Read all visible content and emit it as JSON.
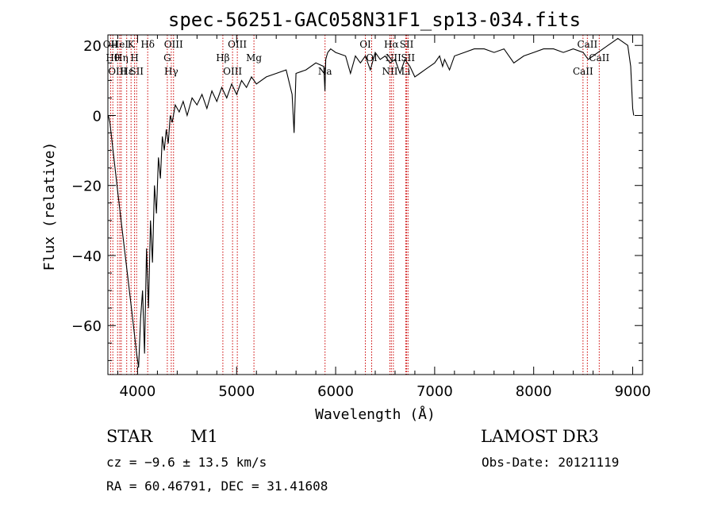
{
  "chart_data": {
    "type": "line",
    "title": "spec-56251-GAC058N31F1_sp13-034.fits",
    "xlabel": "Wavelength (Å)",
    "ylabel": "Flux (relative)",
    "xlim": [
      3700,
      9100
    ],
    "ylim": [
      -74,
      23
    ],
    "xticks": [
      4000,
      5000,
      6000,
      7000,
      8000,
      9000
    ],
    "yticks": [
      -60,
      -40,
      -20,
      0,
      20
    ],
    "xtick_labels": [
      "4000",
      "5000",
      "6000",
      "7000",
      "8000",
      "9000"
    ],
    "ytick_labels": [
      "−60",
      "−40",
      "−20",
      "0",
      "20"
    ],
    "series": [
      {
        "name": "flux",
        "x": [
          3705,
          3720,
          3760,
          3800,
          3850,
          3900,
          3950,
          3990,
          4010,
          4030,
          4050,
          4070,
          4090,
          4110,
          4130,
          4150,
          4170,
          4190,
          4210,
          4230,
          4250,
          4270,
          4290,
          4310,
          4330,
          4350,
          4380,
          4420,
          4460,
          4500,
          4550,
          4600,
          4650,
          4700,
          4750,
          4800,
          4850,
          4900,
          4950,
          5000,
          5050,
          5100,
          5150,
          5200,
          5300,
          5400,
          5500,
          5560,
          5580,
          5600,
          5700,
          5800,
          5880,
          5892,
          5900,
          5910,
          5920,
          5950,
          6000,
          6100,
          6150,
          6200,
          6250,
          6300,
          6350,
          6400,
          6450,
          6500,
          6550,
          6600,
          6650,
          6700,
          6750,
          6800,
          6850,
          6900,
          6950,
          7000,
          7050,
          7080,
          7100,
          7150,
          7200,
          7300,
          7400,
          7500,
          7600,
          7700,
          7800,
          7900,
          8000,
          8100,
          8200,
          8300,
          8400,
          8500,
          8550,
          8600,
          8650,
          8700,
          8750,
          8800,
          8850,
          8900,
          8950,
          8980,
          9000,
          9010
        ],
        "y": [
          0,
          -2,
          -12,
          -22,
          -34,
          -46,
          -58,
          -68,
          -72,
          -58,
          -50,
          -68,
          -38,
          -55,
          -30,
          -42,
          -20,
          -28,
          -12,
          -18,
          -6,
          -10,
          -4,
          -8,
          0,
          -2,
          3,
          1,
          4,
          0,
          5,
          3,
          6,
          2,
          7,
          4,
          8,
          5,
          9,
          6,
          10,
          8,
          11,
          9,
          11,
          12,
          13,
          6,
          -5,
          12,
          13,
          15,
          14,
          7,
          16,
          17,
          18,
          19,
          18,
          17,
          12,
          17,
          15,
          17,
          13,
          18,
          16,
          17,
          15,
          16,
          12,
          16,
          14,
          11,
          12,
          13,
          14,
          15,
          17,
          14,
          16,
          13,
          17,
          18,
          19,
          19,
          18,
          19,
          15,
          17,
          18,
          19,
          19,
          18,
          19,
          18,
          16,
          17,
          18,
          19,
          20,
          21,
          22,
          21,
          20,
          14,
          2,
          0
        ]
      }
    ],
    "lines": [
      {
        "wl": 3727,
        "label": "OII"
      },
      {
        "wl": 3750,
        "label": "Hθ"
      },
      {
        "wl": 3798,
        "label": "OIII"
      },
      {
        "wl": 3820,
        "label": "HeI"
      },
      {
        "wl": 3835,
        "label": "Hη"
      },
      {
        "wl": 3890,
        "label": "Hε"
      },
      {
        "wl": 3934,
        "label": "K"
      },
      {
        "wl": 3969,
        "label": "H"
      },
      {
        "wl": 3990,
        "label": "SII"
      },
      {
        "wl": 4102,
        "label": "Hδ"
      },
      {
        "wl": 4300,
        "label": "G"
      },
      {
        "wl": 4340,
        "label": "Hγ"
      },
      {
        "wl": 4363,
        "label": "OIII"
      },
      {
        "wl": 4861,
        "label": "Hβ"
      },
      {
        "wl": 4959,
        "label": "OIII"
      },
      {
        "wl": 5007,
        "label": "OIII"
      },
      {
        "wl": 5175,
        "label": "Mg"
      },
      {
        "wl": 5893,
        "label": "Na"
      },
      {
        "wl": 6300,
        "label": "OI"
      },
      {
        "wl": 6364,
        "label": "OI"
      },
      {
        "wl": 6548,
        "label": "NII"
      },
      {
        "wl": 6563,
        "label": "Hα"
      },
      {
        "wl": 6583,
        "label": "NII"
      },
      {
        "wl": 6708,
        "label": "Li"
      },
      {
        "wl": 6717,
        "label": "SII"
      },
      {
        "wl": 6731,
        "label": "SII"
      },
      {
        "wl": 8498,
        "label": "CaII"
      },
      {
        "wl": 8542,
        "label": "CaII"
      },
      {
        "wl": 8662,
        "label": "CaII"
      }
    ]
  },
  "info": {
    "class": "STAR",
    "subclass": "M1",
    "survey": "LAMOST DR3",
    "cz": "cz = −9.6 ± 13.5 km/s",
    "obs_date": "Obs-Date: 20121119",
    "coords": "RA =  60.46791, DEC =  31.41608"
  }
}
